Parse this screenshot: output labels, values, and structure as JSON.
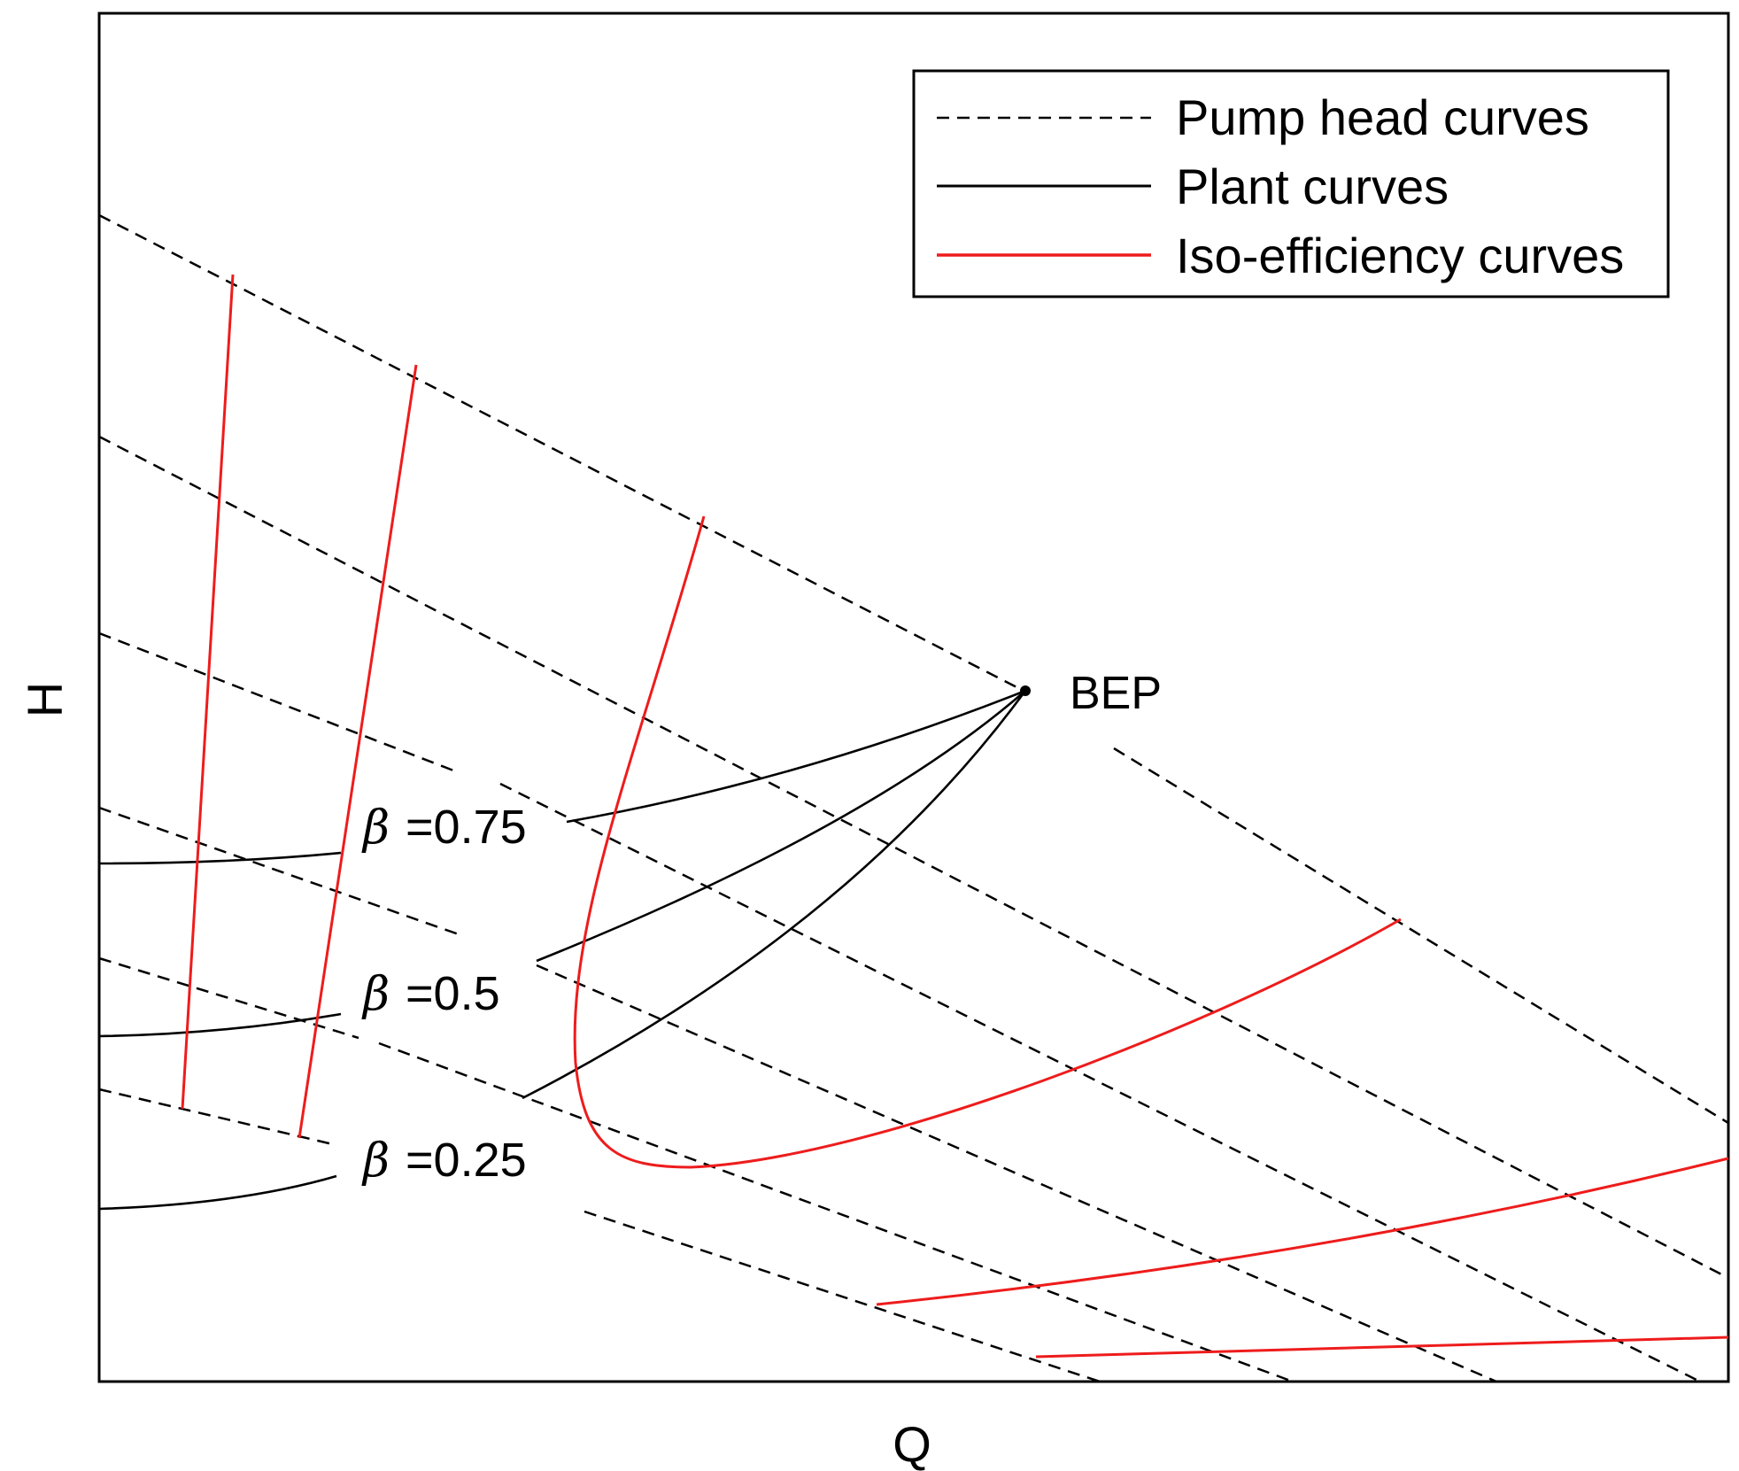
{
  "axes": {
    "xlabel": "Q",
    "ylabel": "H"
  },
  "legend": {
    "placement": "top-right",
    "items": [
      {
        "label": "Pump head curves",
        "style": "dashed",
        "color": "#000000"
      },
      {
        "label": "Plant curves",
        "style": "solid",
        "color": "#000000"
      },
      {
        "label": "Iso-efficiency curves",
        "style": "solid",
        "color": "#ee1c1c"
      }
    ]
  },
  "annotations": {
    "bep": "BEP",
    "beta_symbol": "β",
    "beta_labels": [
      "=0.75",
      "=0.5",
      "=0.25"
    ]
  },
  "colors": {
    "pump_head": "#000000",
    "plant": "#000000",
    "iso_efficiency": "#ee1c1c",
    "frame": "#000000",
    "background": "#ffffff"
  }
}
